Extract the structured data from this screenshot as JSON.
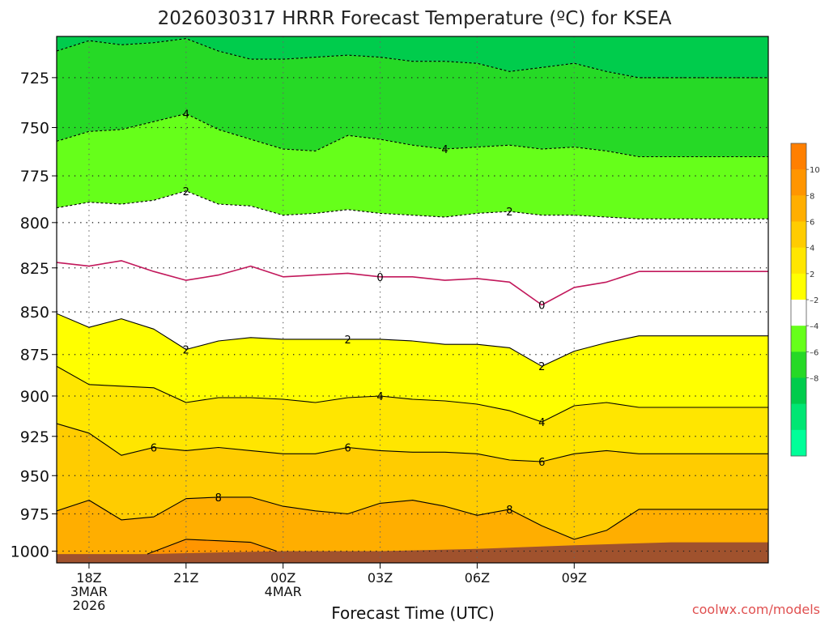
{
  "chart_data": {
    "type": "heatmap",
    "title": "2026030317 HRRR Forecast Temperature (ºC) for KSEA",
    "xlabel": "Forecast Time (UTC)",
    "ylabel": "",
    "credit": "coolwx.com/models",
    "x_range": [
      -1,
      21
    ],
    "y_range": [
      705,
      1008
    ],
    "y_scale": "log pressure (hPa), reversed",
    "grid": true,
    "x_ticks": [
      {
        "x": 0,
        "lines": [
          "18Z",
          "3MAR",
          "2026"
        ]
      },
      {
        "x": 3,
        "lines": [
          "21Z"
        ]
      },
      {
        "x": 6,
        "lines": [
          "00Z",
          "4MAR"
        ]
      },
      {
        "x": 9,
        "lines": [
          "03Z"
        ]
      },
      {
        "x": 12,
        "lines": [
          "06Z"
        ]
      },
      {
        "x": 15,
        "lines": [
          "09Z"
        ]
      }
    ],
    "y_ticks": [
      725,
      750,
      775,
      800,
      825,
      850,
      875,
      900,
      925,
      950,
      975,
      1000
    ],
    "colorbar": {
      "levels": [
        -10,
        -8,
        -6,
        -4,
        -2,
        2,
        4,
        6,
        8,
        10,
        12
      ],
      "labels": [
        "10",
        "8",
        "6",
        "4",
        "2",
        "–2",
        "–4",
        "–6",
        "–8"
      ],
      "colors": [
        "#00ff99",
        "#00e673",
        "#00cc4c",
        "#26d926",
        "#66ff1a",
        "#ffffff",
        "#ffff00",
        "#ffe600",
        "#ffcc00",
        "#ffae00",
        "#ff9500",
        "#ff7f00"
      ]
    },
    "ground_color": "#a0522d",
    "ground_top": [
      [
        -1,
        1002
      ],
      [
        1.8,
        1002
      ],
      [
        6,
        1000
      ],
      [
        9,
        1000
      ],
      [
        12,
        998.5
      ],
      [
        15,
        996
      ],
      [
        18,
        994
      ],
      [
        21,
        994
      ]
    ],
    "isotherms": [
      {
        "value": -6,
        "style": "dashed",
        "label_positions": [],
        "points": [
          [
            -1,
            712
          ],
          [
            0,
            707
          ],
          [
            1,
            709
          ],
          [
            2,
            708
          ],
          [
            3,
            706
          ],
          [
            4,
            712
          ],
          [
            5,
            716
          ],
          [
            6,
            716
          ],
          [
            7,
            715
          ],
          [
            8,
            714
          ],
          [
            9,
            715
          ],
          [
            10,
            717
          ],
          [
            11,
            717
          ],
          [
            12,
            718
          ],
          [
            13,
            722
          ],
          [
            14,
            720
          ],
          [
            15,
            718
          ],
          [
            16,
            722
          ],
          [
            17,
            725
          ]
        ]
      },
      {
        "value": -4,
        "style": "dashed",
        "label_positions": [
          3,
          11
        ],
        "points": [
          [
            -1,
            757
          ],
          [
            0,
            752
          ],
          [
            1,
            751
          ],
          [
            2,
            747
          ],
          [
            3,
            743
          ],
          [
            4,
            751
          ],
          [
            5,
            756
          ],
          [
            6,
            761
          ],
          [
            7,
            762
          ],
          [
            8,
            754
          ],
          [
            9,
            756
          ],
          [
            10,
            759
          ],
          [
            11,
            761
          ],
          [
            12,
            760
          ],
          [
            13,
            759
          ],
          [
            14,
            761
          ],
          [
            15,
            760
          ],
          [
            16,
            762
          ],
          [
            17,
            765
          ]
        ]
      },
      {
        "value": -2,
        "style": "dashed",
        "label_positions": [
          3,
          13
        ],
        "points": [
          [
            -1,
            792
          ],
          [
            0,
            789
          ],
          [
            1,
            790
          ],
          [
            2,
            788
          ],
          [
            3,
            783
          ],
          [
            4,
            790
          ],
          [
            5,
            791
          ],
          [
            6,
            796
          ],
          [
            7,
            795
          ],
          [
            8,
            793
          ],
          [
            9,
            795
          ],
          [
            10,
            796
          ],
          [
            11,
            797
          ],
          [
            12,
            795
          ],
          [
            13,
            794
          ],
          [
            14,
            796
          ],
          [
            15,
            796
          ],
          [
            16,
            797
          ],
          [
            17,
            798
          ]
        ]
      },
      {
        "value": 0,
        "style": "solid",
        "color": "#c2185b",
        "label_positions": [
          9,
          14
        ],
        "points": [
          [
            -1,
            822
          ],
          [
            0,
            824
          ],
          [
            1,
            821
          ],
          [
            2,
            827
          ],
          [
            3,
            832
          ],
          [
            4,
            829
          ],
          [
            5,
            824
          ],
          [
            6,
            830
          ],
          [
            7,
            829
          ],
          [
            8,
            828
          ],
          [
            9,
            830
          ],
          [
            10,
            830
          ],
          [
            11,
            832
          ],
          [
            12,
            831
          ],
          [
            13,
            833
          ],
          [
            14,
            846
          ],
          [
            15,
            836
          ],
          [
            16,
            833
          ],
          [
            17,
            827
          ]
        ]
      },
      {
        "value": 2,
        "style": "solid",
        "label_positions": [
          3,
          8,
          14
        ],
        "points": [
          [
            -1,
            851
          ],
          [
            0,
            859
          ],
          [
            1,
            854
          ],
          [
            2,
            860
          ],
          [
            3,
            872
          ],
          [
            4,
            867
          ],
          [
            5,
            865
          ],
          [
            6,
            866
          ],
          [
            7,
            866
          ],
          [
            8,
            866
          ],
          [
            9,
            866
          ],
          [
            10,
            867
          ],
          [
            11,
            869
          ],
          [
            12,
            869
          ],
          [
            13,
            871
          ],
          [
            14,
            882
          ],
          [
            15,
            873
          ],
          [
            16,
            868
          ],
          [
            17,
            864
          ]
        ]
      },
      {
        "value": 4,
        "style": "solid",
        "label_positions": [
          9,
          14
        ],
        "points": [
          [
            -1,
            882
          ],
          [
            0,
            893
          ],
          [
            1,
            894
          ],
          [
            2,
            895
          ],
          [
            3,
            904
          ],
          [
            4,
            901
          ],
          [
            5,
            901
          ],
          [
            6,
            902
          ],
          [
            7,
            904
          ],
          [
            8,
            901
          ],
          [
            9,
            900
          ],
          [
            10,
            902
          ],
          [
            11,
            903
          ],
          [
            12,
            905
          ],
          [
            13,
            909
          ],
          [
            14,
            916
          ],
          [
            15,
            906
          ],
          [
            16,
            904
          ],
          [
            17,
            907
          ]
        ]
      },
      {
        "value": 6,
        "style": "solid",
        "label_positions": [
          2,
          8,
          14
        ],
        "points": [
          [
            -1,
            917
          ],
          [
            0,
            923
          ],
          [
            1,
            937
          ],
          [
            2,
            932
          ],
          [
            3,
            934
          ],
          [
            4,
            932
          ],
          [
            5,
            934
          ],
          [
            6,
            936
          ],
          [
            7,
            936
          ],
          [
            8,
            932
          ],
          [
            9,
            934
          ],
          [
            10,
            935
          ],
          [
            11,
            935
          ],
          [
            12,
            936
          ],
          [
            13,
            940
          ],
          [
            14,
            941
          ],
          [
            15,
            936
          ],
          [
            16,
            934
          ],
          [
            17,
            936
          ]
        ]
      },
      {
        "value": 8,
        "style": "solid",
        "label_positions": [
          4,
          13
        ],
        "points": [
          [
            -1,
            973
          ],
          [
            0,
            966
          ],
          [
            1,
            979
          ],
          [
            2,
            977
          ],
          [
            3,
            965
          ],
          [
            4,
            964
          ],
          [
            5,
            964
          ],
          [
            6,
            970
          ],
          [
            7,
            973
          ],
          [
            8,
            975
          ],
          [
            9,
            968
          ],
          [
            10,
            966
          ],
          [
            11,
            970
          ],
          [
            12,
            976
          ],
          [
            13,
            972
          ],
          [
            14,
            983
          ],
          [
            15,
            992
          ],
          [
            16,
            986
          ],
          [
            17,
            972
          ]
        ]
      },
      {
        "value": 10,
        "style": "solid",
        "label_positions": [],
        "points": [
          [
            1.8,
            1002
          ],
          [
            3,
            992
          ],
          [
            4,
            993
          ],
          [
            5,
            994
          ],
          [
            5.8,
            1000
          ]
        ]
      }
    ]
  }
}
